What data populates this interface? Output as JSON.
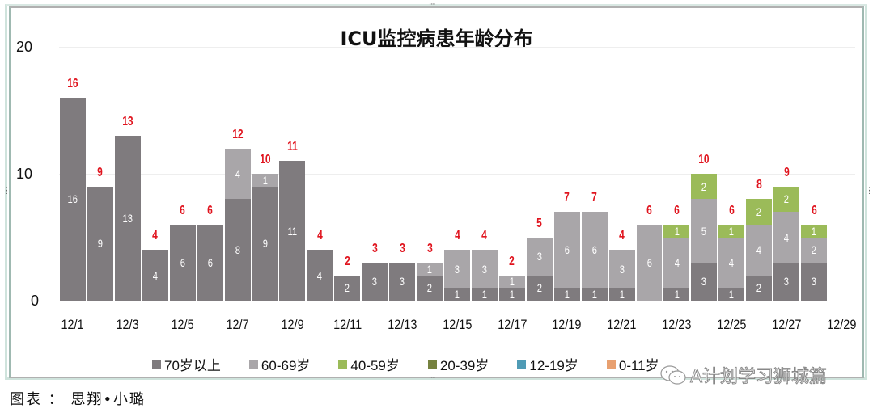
{
  "chart_data": {
    "type": "bar",
    "stacked": true,
    "title": "ICU监控病患年龄分布",
    "xlabel": "",
    "ylabel": "",
    "ylim": [
      0,
      20
    ],
    "yticks": [
      0,
      10,
      20
    ],
    "grid": true,
    "legend_position": "bottom",
    "categories": [
      "12/1",
      "12/2",
      "12/3",
      "12/4",
      "12/5",
      "12/6",
      "12/7",
      "12/8",
      "12/9",
      "12/10",
      "12/11",
      "12/12",
      "12/13",
      "12/14",
      "12/15",
      "12/16",
      "12/17",
      "12/18",
      "12/19",
      "12/20",
      "12/21",
      "12/22",
      "12/23",
      "12/24",
      "12/25",
      "12/26",
      "12/27",
      "12/28",
      "12/29"
    ],
    "xtick_labels": [
      "12/1",
      "12/3",
      "12/5",
      "12/7",
      "12/9",
      "12/11",
      "12/13",
      "12/15",
      "12/17",
      "12/19",
      "12/21",
      "12/23",
      "12/25",
      "12/27",
      "12/29"
    ],
    "series": [
      {
        "name": "70岁以上",
        "color": "#7f7b7e",
        "values": [
          16,
          9,
          13,
          4,
          6,
          6,
          8,
          9,
          11,
          4,
          2,
          3,
          3,
          2,
          1,
          1,
          1,
          2,
          1,
          1,
          1,
          0,
          1,
          3,
          1,
          2,
          3,
          3,
          0
        ]
      },
      {
        "name": "60-69岁",
        "color": "#a9a6a9",
        "values": [
          0,
          0,
          0,
          0,
          0,
          0,
          4,
          1,
          0,
          0,
          0,
          0,
          0,
          1,
          3,
          3,
          1,
          3,
          6,
          6,
          3,
          6,
          4,
          5,
          4,
          4,
          4,
          2,
          0
        ]
      },
      {
        "name": "40-59岁",
        "color": "#9bbb59",
        "values": [
          0,
          0,
          0,
          0,
          0,
          0,
          0,
          0,
          0,
          0,
          0,
          0,
          0,
          0,
          0,
          0,
          0,
          0,
          0,
          0,
          0,
          0,
          1,
          2,
          1,
          2,
          2,
          1,
          0
        ]
      },
      {
        "name": "20-39岁",
        "color": "#76823f",
        "values": [
          0,
          0,
          0,
          0,
          0,
          0,
          0,
          0,
          0,
          0,
          0,
          0,
          0,
          0,
          0,
          0,
          0,
          0,
          0,
          0,
          0,
          0,
          0,
          0,
          0,
          0,
          0,
          0,
          0
        ]
      },
      {
        "name": "12-19岁",
        "color": "#4f9bb5",
        "values": [
          0,
          0,
          0,
          0,
          0,
          0,
          0,
          0,
          0,
          0,
          0,
          0,
          0,
          0,
          0,
          0,
          0,
          0,
          0,
          0,
          0,
          0,
          0,
          0,
          0,
          0,
          0,
          0,
          0
        ]
      },
      {
        "name": "0-11岁",
        "color": "#e8a070",
        "values": [
          0,
          0,
          0,
          0,
          0,
          0,
          0,
          0,
          0,
          0,
          0,
          0,
          0,
          0,
          0,
          0,
          0,
          0,
          0,
          0,
          0,
          0,
          0,
          0,
          0,
          0,
          0,
          0,
          0
        ]
      }
    ],
    "totals": [
      16,
      9,
      13,
      4,
      6,
      6,
      12,
      10,
      11,
      4,
      2,
      3,
      3,
      3,
      4,
      4,
      2,
      5,
      7,
      7,
      4,
      6,
      6,
      10,
      6,
      8,
      9,
      6,
      null
    ],
    "total_label_color": "#e0141e"
  },
  "caption": "图表 ： 思翔•小璐",
  "watermark": "A计划学习狮城篇"
}
